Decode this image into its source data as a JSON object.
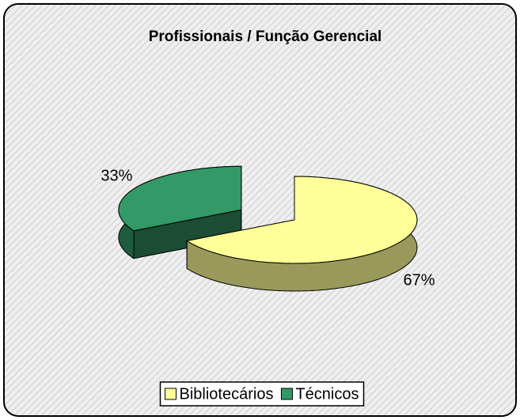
{
  "chart_data": {
    "type": "pie",
    "title": "Profissionais / Função Gerencial",
    "categories": [
      "Bibliotecários",
      "Técnicos"
    ],
    "values": [
      67,
      33
    ],
    "value_labels": [
      "67%",
      "33%"
    ],
    "colors": [
      "#ffff99",
      "#339966"
    ],
    "legend": "bottom"
  }
}
